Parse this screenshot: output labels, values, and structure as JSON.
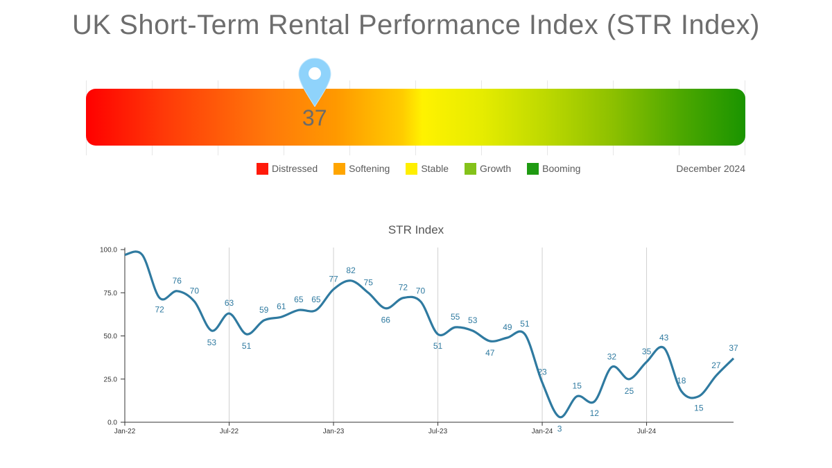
{
  "header": {
    "title": "UK Short-Term Rental Performance Index (STR Index)"
  },
  "gauge": {
    "value": 37,
    "value_label": "37",
    "min": 0,
    "max": 100,
    "date_label": "December 2024",
    "pin_color": "#8fd3fb",
    "legend": [
      {
        "label": "Distressed",
        "color": "#ff1a0a"
      },
      {
        "label": "Softening",
        "color": "#ffa500"
      },
      {
        "label": "Stable",
        "color": "#ffef00"
      },
      {
        "label": "Growth",
        "color": "#84c21a"
      },
      {
        "label": "Booming",
        "color": "#1f9a12"
      }
    ]
  },
  "chart_data": {
    "type": "line",
    "title": "STR Index",
    "xlabel": "",
    "ylabel": "",
    "ylim": [
      0,
      100
    ],
    "yticks": [
      "0.0",
      "25.0",
      "50.0",
      "75.0",
      "100.0"
    ],
    "xticks": [
      "Jan-22",
      "Jul-22",
      "Jan-23",
      "Jul-23",
      "Jan-24",
      "Jul-24"
    ],
    "line_color": "#2f7aa0",
    "series": [
      {
        "name": "STR Index",
        "x": [
          "Jan-22",
          "Feb-22",
          "Mar-22",
          "Apr-22",
          "May-22",
          "Jun-22",
          "Jul-22",
          "Aug-22",
          "Sep-22",
          "Oct-22",
          "Nov-22",
          "Dec-22",
          "Jan-23",
          "Feb-23",
          "Mar-23",
          "Apr-23",
          "May-23",
          "Jun-23",
          "Jul-23",
          "Aug-23",
          "Sep-23",
          "Oct-23",
          "Nov-23",
          "Dec-23",
          "Jan-24",
          "Feb-24",
          "Mar-24",
          "Apr-24",
          "May-24",
          "Jun-24",
          "Jul-24",
          "Aug-24",
          "Sep-24",
          "Oct-24",
          "Nov-24",
          "Dec-24"
        ],
        "values": [
          97,
          97,
          72,
          76,
          70,
          53,
          63,
          51,
          59,
          61,
          65,
          65,
          77,
          82,
          75,
          66,
          72,
          70,
          51,
          55,
          53,
          47,
          49,
          51,
          23,
          3,
          15,
          12,
          32,
          25,
          35,
          43,
          18,
          15,
          27,
          37
        ],
        "labels": [
          "",
          "",
          "72",
          "76",
          "70",
          "53",
          "63",
          "51",
          "59",
          "61",
          "65",
          "65",
          "77",
          "82",
          "75",
          "66",
          "72",
          "70",
          "51",
          "55",
          "53",
          "47",
          "49",
          "51",
          "23",
          "3",
          "15",
          "12",
          "32",
          "25",
          "35",
          "43",
          "18",
          "15",
          "27",
          "37"
        ]
      }
    ]
  }
}
